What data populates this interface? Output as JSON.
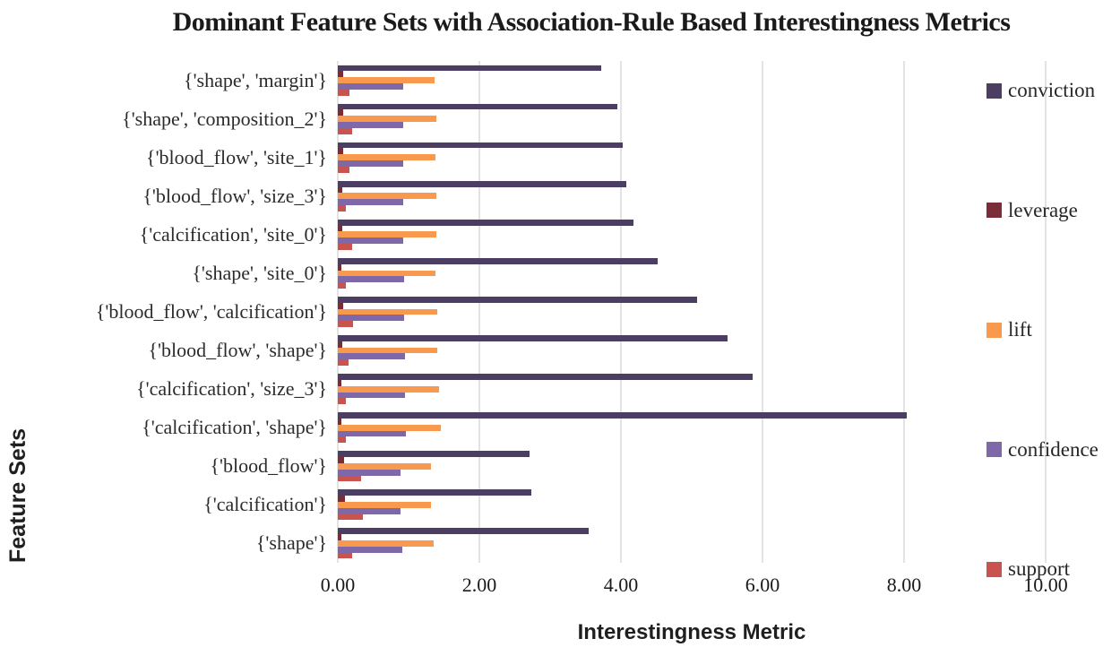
{
  "chart_data": {
    "type": "bar",
    "orientation": "horizontal",
    "title": "Dominant Feature Sets with Association-Rule Based Interestingness Metrics",
    "xlabel": "Interestingness Metric",
    "ylabel": "Feature Sets",
    "xlim": [
      0,
      10
    ],
    "grid": "vertical",
    "legend_position": "right",
    "xticks": [
      {
        "value": 0,
        "label": "0.00"
      },
      {
        "value": 2,
        "label": "2.00"
      },
      {
        "value": 4,
        "label": "4.00"
      },
      {
        "value": 6,
        "label": "6.00"
      },
      {
        "value": 8,
        "label": "8.00"
      },
      {
        "value": 10,
        "label": "10.00"
      }
    ],
    "categories": [
      "{'shape', 'margin'}",
      "{'shape', 'composition_2'}",
      "{'blood_flow', 'site_1'}",
      "{'blood_flow', 'size_3'}",
      "{'calcification', 'site_0'}",
      "{'shape', 'site_0'}",
      "{'blood_flow', 'calcification'}",
      "{'blood_flow', 'shape'}",
      "{'calcification', 'size_3'}",
      "{'calcification', 'shape'}",
      "{'blood_flow'}",
      "{'calcification'}",
      "{'shape'}"
    ],
    "series": [
      {
        "name": "conviction",
        "color": "#4C3D62",
        "values": [
          3.72,
          3.95,
          4.02,
          4.08,
          4.18,
          4.52,
          5.08,
          5.51,
          5.86,
          8.04,
          2.71,
          2.74,
          3.55
        ]
      },
      {
        "name": "leverage",
        "color": "#7A2D36",
        "values": [
          0.07,
          0.07,
          0.07,
          0.06,
          0.06,
          0.05,
          0.07,
          0.06,
          0.05,
          0.05,
          0.09,
          0.1,
          0.05
        ]
      },
      {
        "name": "lift",
        "color": "#F8994D",
        "values": [
          1.37,
          1.39,
          1.38,
          1.39,
          1.39,
          1.38,
          1.4,
          1.41,
          1.43,
          1.45,
          1.32,
          1.32,
          1.36
        ]
      },
      {
        "name": "confidence",
        "color": "#7F68A8",
        "values": [
          0.92,
          0.93,
          0.92,
          0.93,
          0.93,
          0.94,
          0.94,
          0.95,
          0.95,
          0.96,
          0.88,
          0.88,
          0.91
        ]
      },
      {
        "name": "support",
        "color": "#C9534F",
        "values": [
          0.17,
          0.2,
          0.17,
          0.12,
          0.2,
          0.12,
          0.21,
          0.15,
          0.12,
          0.12,
          0.33,
          0.36,
          0.2
        ]
      }
    ]
  }
}
